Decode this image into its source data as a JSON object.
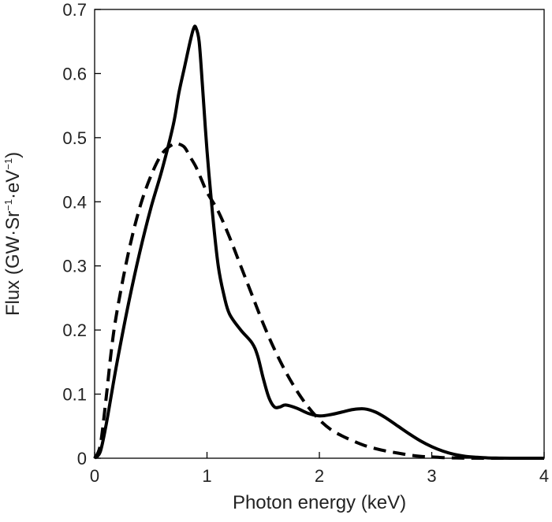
{
  "chart_data": {
    "type": "line",
    "title": "",
    "xlabel": "Photon energy (keV)",
    "ylabel": {
      "main": "Flux (GW·Sr",
      "sup1": "−1",
      "mid": "·eV",
      "sup2": "−1",
      "end": ")"
    },
    "xlim": [
      0,
      4
    ],
    "ylim": [
      0,
      0.7
    ],
    "xticks": [
      0,
      1,
      2,
      3,
      4
    ],
    "xtick_labels": [
      "0",
      "1",
      "2",
      "3",
      "4"
    ],
    "yticks": [
      0,
      0.1,
      0.2,
      0.3,
      0.4,
      0.5,
      0.6,
      0.7
    ],
    "ytick_labels": [
      "0",
      "0.1",
      "0.2",
      "0.3",
      "0.4",
      "0.5",
      "0.6",
      "0.7"
    ],
    "grid": false,
    "legend": null,
    "series": [
      {
        "name": "solid",
        "style": "solid",
        "color": "#000000",
        "x": [
          0,
          0.05,
          0.1,
          0.15,
          0.2,
          0.3,
          0.4,
          0.5,
          0.6,
          0.7,
          0.75,
          0.8,
          0.85,
          0.88,
          0.9,
          0.93,
          0.96,
          1.0,
          1.05,
          1.1,
          1.15,
          1.2,
          1.3,
          1.4,
          1.45,
          1.5,
          1.55,
          1.6,
          1.65,
          1.7,
          1.8,
          1.9,
          2.0,
          2.1,
          2.2,
          2.3,
          2.4,
          2.5,
          2.6,
          2.7,
          2.8,
          2.9,
          3.0,
          3.1,
          3.2,
          3.3,
          3.4,
          3.5,
          3.6,
          3.7,
          3.8,
          4.0
        ],
        "y": [
          0,
          0.01,
          0.05,
          0.1,
          0.15,
          0.24,
          0.32,
          0.39,
          0.45,
          0.52,
          0.57,
          0.61,
          0.65,
          0.67,
          0.672,
          0.65,
          0.58,
          0.48,
          0.38,
          0.3,
          0.255,
          0.225,
          0.2,
          0.18,
          0.16,
          0.125,
          0.095,
          0.08,
          0.08,
          0.083,
          0.078,
          0.07,
          0.066,
          0.068,
          0.072,
          0.076,
          0.077,
          0.072,
          0.062,
          0.05,
          0.038,
          0.027,
          0.018,
          0.011,
          0.006,
          0.003,
          0.0015,
          0.0005,
          0.0002,
          0,
          0,
          0
        ]
      },
      {
        "name": "dashed",
        "style": "dashed",
        "color": "#000000",
        "x": [
          0,
          0.05,
          0.1,
          0.15,
          0.2,
          0.3,
          0.4,
          0.5,
          0.6,
          0.7,
          0.75,
          0.8,
          0.85,
          0.9,
          0.95,
          1.0,
          1.1,
          1.2,
          1.3,
          1.4,
          1.5,
          1.6,
          1.7,
          1.8,
          1.9,
          2.0,
          2.1,
          2.2,
          2.3,
          2.4,
          2.5,
          2.6,
          2.7,
          2.8,
          2.9,
          3.0,
          3.1,
          3.2,
          3.3,
          3.5,
          4.0
        ],
        "y": [
          0,
          0.02,
          0.09,
          0.17,
          0.23,
          0.32,
          0.39,
          0.44,
          0.475,
          0.49,
          0.49,
          0.485,
          0.47,
          0.455,
          0.435,
          0.415,
          0.385,
          0.345,
          0.3,
          0.255,
          0.21,
          0.17,
          0.135,
          0.105,
          0.08,
          0.06,
          0.045,
          0.035,
          0.027,
          0.02,
          0.015,
          0.011,
          0.008,
          0.005,
          0.003,
          0.002,
          0.001,
          0.0005,
          0.0002,
          0,
          0
        ]
      }
    ]
  }
}
